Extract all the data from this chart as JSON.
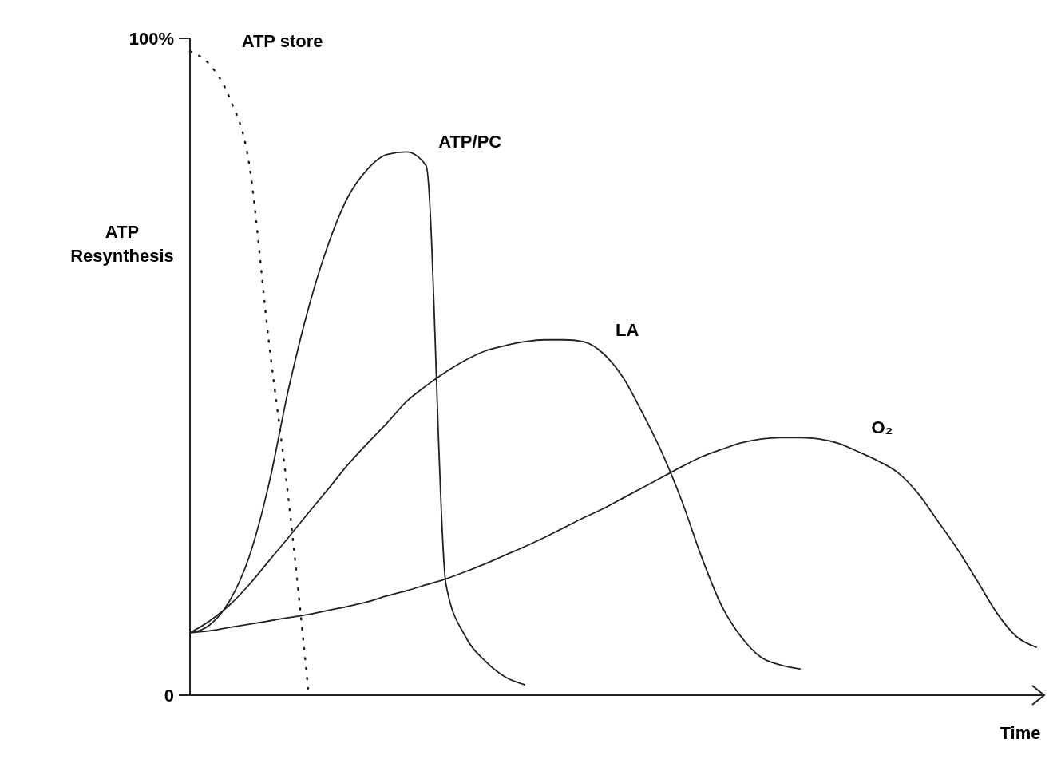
{
  "chart_data": {
    "type": "line",
    "xlabel": "Time",
    "ylabel": "ATP\nResynthesis",
    "categories": [
      null,
      null,
      null,
      null,
      null,
      null,
      null,
      null,
      null,
      null,
      null,
      null,
      null,
      null,
      null,
      null,
      null,
      null,
      null,
      null,
      null,
      null,
      null,
      null,
      null,
      null,
      null,
      null,
      null,
      null,
      null,
      null,
      null,
      null,
      null,
      null,
      null,
      null,
      null,
      null,
      null,
      null,
      null,
      null
    ],
    "ylim": [
      0,
      100
    ],
    "yticks": [
      {
        "value": 0,
        "label": "0"
      },
      {
        "value": 100,
        "label": "100%"
      }
    ],
    "tick_labels": "y",
    "marker": "none",
    "series": [
      {
        "name": "ATP store",
        "color": "#222222",
        "line_style": "dotted",
        "values": [
          98,
          96,
          91,
          81,
          54,
          30,
          1,
          null,
          null,
          null,
          null,
          null,
          null,
          null,
          null,
          null,
          null,
          null,
          null,
          null,
          null,
          null,
          null,
          null,
          null,
          null,
          null,
          null,
          null,
          null,
          null,
          null,
          null,
          null,
          null,
          null,
          null,
          null,
          null,
          null,
          null,
          null,
          null,
          null
        ]
      },
      {
        "name": "ATP/PC",
        "color": "#222222",
        "line_style": "solid",
        "values": [
          9.5,
          10.7,
          14.3,
          21,
          32,
          46.5,
          58.7,
          68.4,
          75.7,
          80,
          82.3,
          82.7,
          80.6,
          17,
          8.9,
          5.2,
          2.8,
          1.6,
          null,
          null,
          null,
          null,
          null,
          null,
          null,
          null,
          null,
          null,
          null,
          null,
          null,
          null,
          null,
          null,
          null,
          null,
          null,
          null,
          null,
          null,
          null,
          null,
          null,
          null
        ]
      },
      {
        "name": "LA",
        "color": "#222222",
        "line_style": "solid",
        "values": [
          9.5,
          11.3,
          13.7,
          16.8,
          20.4,
          24,
          27.7,
          31.3,
          35,
          38.3,
          41.4,
          44.7,
          47.1,
          49.2,
          51,
          52.4,
          53.2,
          53.8,
          54.1,
          54.1,
          53.8,
          52,
          48.4,
          42.9,
          36.8,
          29.5,
          21,
          13.7,
          8.9,
          5.8,
          4.6,
          4,
          null,
          null,
          null,
          null,
          null,
          null,
          null,
          null,
          null,
          null,
          null,
          null
        ]
      },
      {
        "name": "O₂",
        "color": "#222222",
        "line_style": "solid",
        "values": [
          9.5,
          9.8,
          10.3,
          10.8,
          11.3,
          11.8,
          12.3,
          12.9,
          13.5,
          14.2,
          15.1,
          15.9,
          16.8,
          17.7,
          18.8,
          20,
          21.3,
          22.6,
          24,
          25.5,
          27,
          28.4,
          30,
          31.6,
          33.2,
          34.8,
          36.3,
          37.4,
          38.4,
          39,
          39.2,
          39.2,
          39,
          38.3,
          37,
          35.6,
          33.8,
          30.7,
          26.5,
          22.2,
          17.4,
          12.5,
          8.9,
          7.3
        ]
      }
    ]
  }
}
